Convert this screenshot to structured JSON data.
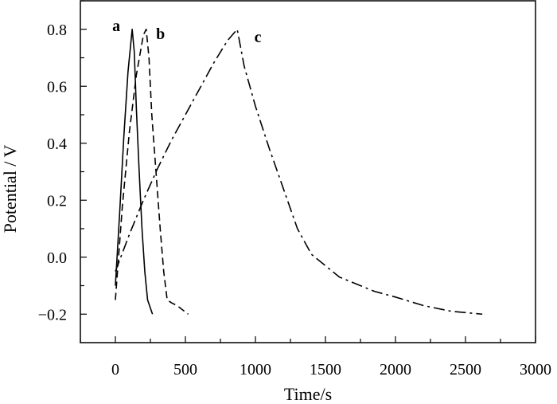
{
  "chart_data": {
    "type": "line",
    "title": "",
    "xlabel": "Time/s",
    "ylabel": "Potential / V",
    "xlim": [
      -250,
      3000
    ],
    "ylim": [
      -0.3,
      0.9
    ],
    "x_ticks": [
      0,
      500,
      1000,
      1500,
      2000,
      2500,
      3000
    ],
    "x_tick_labels": [
      "0",
      "500",
      "1000",
      "1500",
      "2000",
      "2500",
      "3000"
    ],
    "y_ticks": [
      -0.2,
      0.0,
      0.2,
      0.4,
      0.6,
      0.8
    ],
    "y_tick_labels": [
      "−0.2",
      "0.0",
      "0.2",
      "0.4",
      "0.6",
      "0.8"
    ],
    "grid": false,
    "legend": "none",
    "series": [
      {
        "name": "a",
        "line_style": "solid",
        "points": [
          [
            0,
            -0.1
          ],
          [
            30,
            0.15
          ],
          [
            60,
            0.42
          ],
          [
            90,
            0.65
          ],
          [
            120,
            0.8
          ],
          [
            135,
            0.72
          ],
          [
            150,
            0.52
          ],
          [
            170,
            0.3
          ],
          [
            190,
            0.1
          ],
          [
            210,
            -0.05
          ],
          [
            230,
            -0.15
          ],
          [
            265,
            -0.2
          ]
        ]
      },
      {
        "name": "b",
        "line_style": "dashed",
        "points": [
          [
            0,
            -0.15
          ],
          [
            50,
            0.18
          ],
          [
            100,
            0.44
          ],
          [
            150,
            0.64
          ],
          [
            200,
            0.78
          ],
          [
            220,
            0.8
          ],
          [
            240,
            0.7
          ],
          [
            260,
            0.5
          ],
          [
            290,
            0.3
          ],
          [
            320,
            0.1
          ],
          [
            345,
            -0.05
          ],
          [
            370,
            -0.15
          ],
          [
            400,
            -0.16
          ],
          [
            440,
            -0.17
          ],
          [
            520,
            -0.2
          ]
        ]
      },
      {
        "name": "c",
        "line_style": "dashdot",
        "points": [
          [
            0,
            -0.05
          ],
          [
            100,
            0.08
          ],
          [
            200,
            0.2
          ],
          [
            300,
            0.31
          ],
          [
            400,
            0.41
          ],
          [
            500,
            0.5
          ],
          [
            600,
            0.59
          ],
          [
            700,
            0.68
          ],
          [
            800,
            0.76
          ],
          [
            870,
            0.8
          ],
          [
            920,
            0.67
          ],
          [
            1000,
            0.53
          ],
          [
            1100,
            0.38
          ],
          [
            1200,
            0.24
          ],
          [
            1300,
            0.1
          ],
          [
            1400,
            0.01
          ],
          [
            1500,
            -0.03
          ],
          [
            1600,
            -0.07
          ],
          [
            1750,
            -0.1
          ],
          [
            1850,
            -0.12
          ],
          [
            2000,
            -0.14
          ],
          [
            2200,
            -0.17
          ],
          [
            2400,
            -0.19
          ],
          [
            2620,
            -0.2
          ]
        ]
      }
    ]
  }
}
